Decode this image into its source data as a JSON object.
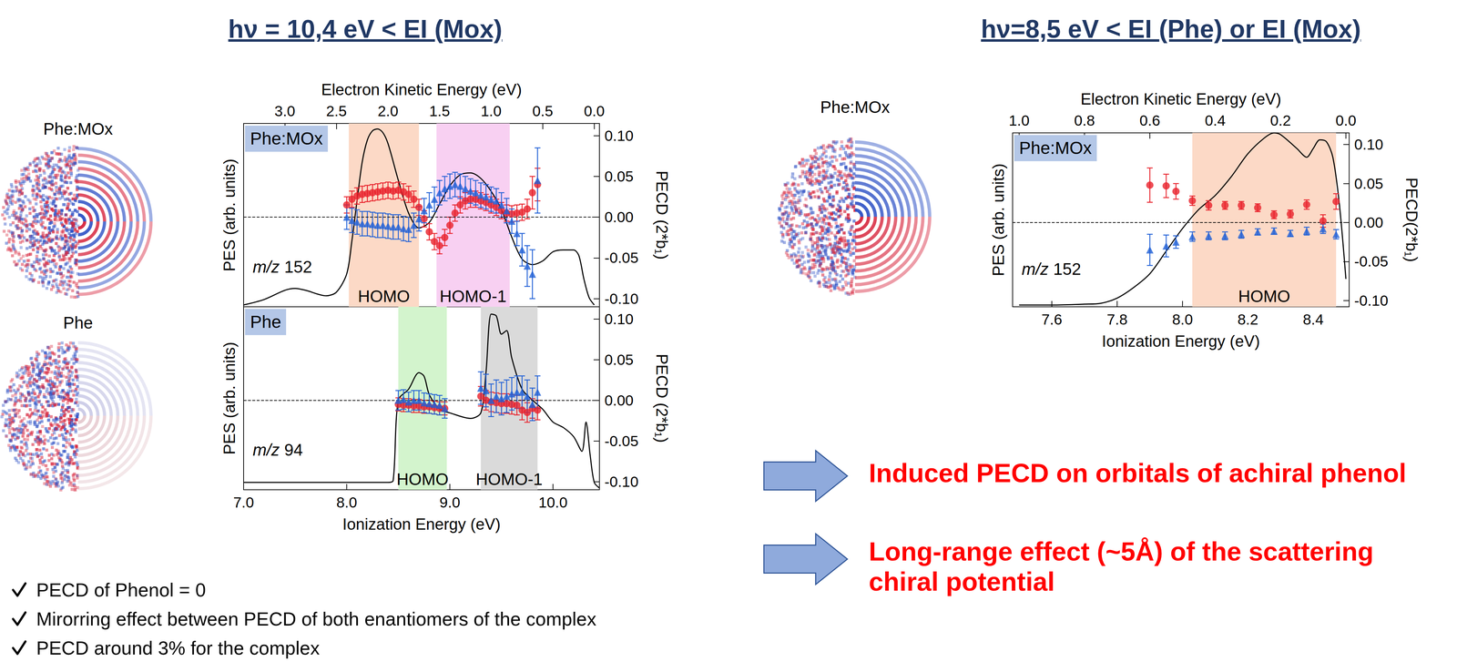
{
  "titles": [
    "hν = 10,4 eV < EI (Mox)",
    "hν=8,5 eV < EI (Phe) or EI (Mox)"
  ],
  "image_labels": [
    "Phe:MOx",
    "Phe",
    "Phe:MOx"
  ],
  "chart_data": [
    {
      "type": "line",
      "panel_label": "Phe:MOx",
      "annotation": "m/z 152",
      "x2_label": "Electron Kinetic Energy (eV)",
      "y_label": "PES (arb. units)",
      "y2_label": "PECD (2*b₁)",
      "xlim": [
        7.0,
        10.45
      ],
      "x2lim": [
        -0.05,
        3.4
      ],
      "x2ticks": [
        {
          "value": 0,
          "label": "0.0"
        },
        0.5,
        {
          "value": 1,
          "label": "1.0"
        },
        1.5,
        {
          "value": 2,
          "label": "2.0"
        },
        2.5,
        {
          "value": 3,
          "label": "3.0"
        }
      ],
      "ylim": [
        0,
        1
      ],
      "y2lim": [
        -0.11,
        0.115
      ],
      "y2ticks": [
        {
          "value": -0.1,
          "label": "-0.10"
        },
        -0.05,
        {
          "value": 0,
          "label": "0.00"
        },
        0.05,
        {
          "value": 0.1,
          "label": "0.10"
        }
      ],
      "regions": [
        {
          "label": "HOMO",
          "from": 8.02,
          "to": 8.7,
          "color": "#fcd9c6"
        },
        {
          "label": "HOMO-1",
          "from": 8.87,
          "to": 9.58,
          "color": "#f8d0f2"
        }
      ],
      "hlines": [
        {
          "value": 0,
          "axis": "y2",
          "line_style": "dashed"
        }
      ],
      "series": [
        {
          "type": "line",
          "color": "#000000",
          "x": [
            7.0,
            7.2,
            7.4,
            7.5,
            7.6,
            7.8,
            7.9,
            8.0,
            8.05,
            8.1,
            8.15,
            8.2,
            8.25,
            8.3,
            8.35,
            8.4,
            8.5,
            8.6,
            8.7,
            8.8,
            8.9,
            9.0,
            9.1,
            9.2,
            9.3,
            9.4,
            9.5,
            9.6,
            9.7,
            9.8,
            9.9,
            10.0,
            10.1,
            10.2,
            10.25,
            10.3,
            10.35,
            10.4
          ],
          "values": [
            0.01,
            0.04,
            0.09,
            0.1,
            0.09,
            0.06,
            0.08,
            0.18,
            0.36,
            0.58,
            0.79,
            0.91,
            0.96,
            0.97,
            0.95,
            0.89,
            0.69,
            0.51,
            0.43,
            0.46,
            0.56,
            0.66,
            0.72,
            0.73,
            0.7,
            0.63,
            0.53,
            0.38,
            0.26,
            0.23,
            0.25,
            0.3,
            0.31,
            0.31,
            0.28,
            0.15,
            0.05,
            0.01
          ]
        },
        {
          "type": "scatter",
          "axis": "y2",
          "color": "#e8202a",
          "marker": "circle",
          "x": [
            8.0,
            8.05,
            8.1,
            8.15,
            8.2,
            8.25,
            8.3,
            8.35,
            8.4,
            8.45,
            8.5,
            8.55,
            8.6,
            8.65,
            8.7,
            8.75,
            8.8,
            8.85,
            8.9,
            8.95,
            9.0,
            9.05,
            9.1,
            9.15,
            9.2,
            9.25,
            9.3,
            9.35,
            9.4,
            9.45,
            9.5,
            9.55,
            9.6,
            9.65,
            9.7,
            9.75,
            9.8,
            9.85
          ],
          "values": [
            0.015,
            0.022,
            0.026,
            0.028,
            0.029,
            0.03,
            0.031,
            0.032,
            0.033,
            0.032,
            0.033,
            0.031,
            0.028,
            0.022,
            0.012,
            -0.002,
            -0.018,
            -0.03,
            -0.035,
            -0.025,
            -0.01,
            0.005,
            0.015,
            0.02,
            0.022,
            0.022,
            0.02,
            0.018,
            0.015,
            0.012,
            0.008,
            0.005,
            0.004,
            0.005,
            0.006,
            0.01,
            0.03,
            0.04
          ],
          "errors": [
            0.01,
            0.01,
            0.01,
            0.01,
            0.01,
            0.01,
            0.01,
            0.01,
            0.01,
            0.01,
            0.01,
            0.01,
            0.01,
            0.01,
            0.01,
            0.01,
            0.01,
            0.01,
            0.01,
            0.01,
            0.01,
            0.01,
            0.01,
            0.01,
            0.01,
            0.01,
            0.01,
            0.01,
            0.01,
            0.01,
            0.01,
            0.01,
            0.01,
            0.01,
            0.01,
            0.012,
            0.02,
            0.02
          ]
        },
        {
          "type": "scatter",
          "axis": "y2",
          "color": "#1f5fd6",
          "marker": "triangle",
          "x": [
            8.0,
            8.05,
            8.1,
            8.15,
            8.2,
            8.25,
            8.3,
            8.35,
            8.4,
            8.45,
            8.5,
            8.55,
            8.6,
            8.65,
            8.7,
            8.75,
            8.8,
            8.85,
            8.9,
            8.95,
            9.0,
            9.05,
            9.1,
            9.15,
            9.2,
            9.25,
            9.3,
            9.35,
            9.4,
            9.45,
            9.5,
            9.55,
            9.6,
            9.65,
            9.7,
            9.75,
            9.8,
            9.85
          ],
          "values": [
            0.0,
            -0.004,
            -0.006,
            -0.008,
            -0.008,
            -0.009,
            -0.01,
            -0.01,
            -0.011,
            -0.012,
            -0.012,
            -0.014,
            -0.015,
            -0.01,
            -0.002,
            0.008,
            0.015,
            0.022,
            0.03,
            0.035,
            0.038,
            0.04,
            0.038,
            0.035,
            0.032,
            0.03,
            0.027,
            0.025,
            0.022,
            0.02,
            0.015,
            0.008,
            -0.005,
            -0.02,
            -0.04,
            -0.06,
            -0.07,
            0.045
          ],
          "errors": [
            0.015,
            0.015,
            0.015,
            0.015,
            0.015,
            0.015,
            0.015,
            0.015,
            0.015,
            0.015,
            0.015,
            0.015,
            0.015,
            0.015,
            0.015,
            0.015,
            0.015,
            0.015,
            0.015,
            0.015,
            0.015,
            0.015,
            0.015,
            0.015,
            0.015,
            0.015,
            0.015,
            0.015,
            0.015,
            0.015,
            0.015,
            0.015,
            0.015,
            0.015,
            0.02,
            0.025,
            0.03,
            0.04
          ]
        }
      ]
    },
    {
      "type": "line",
      "panel_label": "Phe",
      "annotation": "m/z 94",
      "x_label": "Ionization Energy (eV)",
      "y_label": "PES (arb. units)",
      "y2_label": "PECD (2*b₁)",
      "xlim": [
        7.0,
        10.45
      ],
      "xticks": [
        {
          "value": 7,
          "label": "7.0"
        },
        {
          "value": 8,
          "label": "8.0"
        },
        {
          "value": 9,
          "label": "9.0"
        },
        {
          "value": 10,
          "label": "10.0"
        }
      ],
      "ylim": [
        0,
        1
      ],
      "y2lim": [
        -0.11,
        0.115
      ],
      "y2ticks": [
        {
          "value": -0.1,
          "label": "-0.10"
        },
        -0.05,
        {
          "value": 0,
          "label": "0.00"
        },
        0.05,
        {
          "value": 0.1,
          "label": "0.10"
        }
      ],
      "regions": [
        {
          "label": "HOMO",
          "from": 8.5,
          "to": 8.97,
          "color": "#d3f4cd"
        },
        {
          "label": "HOMO-1",
          "from": 9.3,
          "to": 9.85,
          "color": "#dadada"
        }
      ],
      "hlines": [
        {
          "value": 0,
          "axis": "y2",
          "line_style": "dashed"
        }
      ],
      "series": [
        {
          "type": "line",
          "color": "#000000",
          "x": [
            7.0,
            7.5,
            8.0,
            8.4,
            8.45,
            8.5,
            8.6,
            8.7,
            8.75,
            8.8,
            8.9,
            9.0,
            9.2,
            9.3,
            9.35,
            9.4,
            9.45,
            9.5,
            9.55,
            9.6,
            9.7,
            9.8,
            9.9,
            10.0,
            10.1,
            10.2,
            10.28,
            10.32,
            10.36,
            10.4,
            10.45
          ],
          "values": [
            0.04,
            0.04,
            0.04,
            0.04,
            0.05,
            0.49,
            0.55,
            0.64,
            0.62,
            0.52,
            0.44,
            0.42,
            0.39,
            0.42,
            0.64,
            0.96,
            0.95,
            0.85,
            0.87,
            0.72,
            0.55,
            0.49,
            0.44,
            0.37,
            0.34,
            0.29,
            0.21,
            0.37,
            0.19,
            0.04,
            0.01
          ]
        },
        {
          "type": "scatter",
          "axis": "y2",
          "color": "#e8202a",
          "marker": "circle",
          "x": [
            8.5,
            8.55,
            8.6,
            8.65,
            8.7,
            8.75,
            8.8,
            8.85,
            8.9,
            8.95,
            9.3,
            9.35,
            9.4,
            9.45,
            9.5,
            9.55,
            9.6,
            9.65,
            9.7,
            9.75,
            9.8,
            9.85
          ],
          "values": [
            -0.005,
            -0.006,
            -0.006,
            -0.007,
            -0.007,
            -0.008,
            -0.008,
            -0.009,
            -0.01,
            -0.01,
            0.005,
            0.0,
            -0.002,
            -0.003,
            -0.004,
            -0.004,
            -0.005,
            -0.006,
            -0.012,
            -0.015,
            -0.01,
            -0.012
          ],
          "errors": [
            0.008,
            0.008,
            0.008,
            0.008,
            0.008,
            0.008,
            0.008,
            0.008,
            0.008,
            0.008,
            0.012,
            0.012,
            0.012,
            0.012,
            0.012,
            0.012,
            0.012,
            0.012,
            0.012,
            0.012,
            0.012,
            0.012
          ]
        },
        {
          "type": "scatter",
          "axis": "y2",
          "color": "#1f5fd6",
          "marker": "triangle",
          "x": [
            8.5,
            8.55,
            8.6,
            8.65,
            8.7,
            8.75,
            8.8,
            8.85,
            8.9,
            8.95,
            9.3,
            9.35,
            9.4,
            9.45,
            9.5,
            9.55,
            9.6,
            9.65,
            9.7,
            9.75,
            9.8,
            9.85
          ],
          "values": [
            0.0,
            0.001,
            -0.002,
            0.0,
            0.0,
            -0.003,
            -0.004,
            -0.005,
            -0.006,
            -0.01,
            0.015,
            0.012,
            0.0,
            0.005,
            0.002,
            0.005,
            0.008,
            0.01,
            0.01,
            0.005,
            -0.005,
            0.01
          ],
          "errors": [
            0.012,
            0.012,
            0.012,
            0.012,
            0.012,
            0.012,
            0.012,
            0.012,
            0.012,
            0.012,
            0.02,
            0.02,
            0.02,
            0.02,
            0.02,
            0.02,
            0.02,
            0.02,
            0.02,
            0.02,
            0.02,
            0.02
          ]
        }
      ]
    },
    {
      "type": "line",
      "panel_label": "Phe:MOx",
      "annotation": "m/z 152",
      "x_label": "Ionization Energy (eV)",
      "x2_label": "Electron Kinetic Energy (eV)",
      "y_label": "PES (arb. units)",
      "y2_label": "PECD(2*b₁)",
      "xlim": [
        7.48,
        8.51
      ],
      "xticks": [
        7.6,
        7.8,
        {
          "value": 8,
          "label": "8.0"
        },
        8.2,
        8.4
      ],
      "x2lim": [
        -0.01,
        1.02
      ],
      "x2ticks": [
        {
          "value": 0,
          "label": "0.0"
        },
        0.2,
        0.4,
        0.6,
        0.8,
        {
          "value": 1,
          "label": "1.0"
        }
      ],
      "ylim": [
        0,
        1
      ],
      "y2lim": [
        -0.108,
        0.115
      ],
      "y2ticks": [
        {
          "value": -0.1,
          "label": "-0.10"
        },
        -0.05,
        {
          "value": 0,
          "label": "0.00"
        },
        0.05,
        {
          "value": 0.1,
          "label": "0.10"
        }
      ],
      "regions": [
        {
          "label": "HOMO",
          "from": 8.03,
          "to": 8.47,
          "color": "#fcd9c6"
        }
      ],
      "hlines": [
        {
          "value": 0,
          "axis": "y2",
          "line_style": "dashed"
        }
      ],
      "series": [
        {
          "type": "line",
          "color": "#000000",
          "x": [
            7.5,
            7.6,
            7.7,
            7.75,
            7.8,
            7.85,
            7.9,
            7.95,
            8.0,
            8.05,
            8.1,
            8.15,
            8.2,
            8.25,
            8.28,
            8.3,
            8.35,
            8.38,
            8.4,
            8.42,
            8.44,
            8.46,
            8.48,
            8.5
          ],
          "values": [
            0.01,
            0.01,
            0.015,
            0.02,
            0.05,
            0.11,
            0.19,
            0.32,
            0.45,
            0.56,
            0.64,
            0.75,
            0.88,
            0.97,
            1.0,
            0.99,
            0.91,
            0.86,
            0.91,
            0.96,
            0.95,
            0.86,
            0.59,
            0.16
          ]
        },
        {
          "type": "scatter",
          "axis": "y2",
          "color": "#e8202a",
          "marker": "circle",
          "x": [
            7.9,
            7.95,
            7.98,
            8.03,
            8.08,
            8.13,
            8.18,
            8.23,
            8.28,
            8.33,
            8.38,
            8.43,
            8.47
          ],
          "values": [
            0.048,
            0.047,
            0.04,
            0.028,
            0.022,
            0.022,
            0.022,
            0.019,
            0.01,
            0.011,
            0.023,
            0.002,
            0.027
          ],
          "errors": [
            0.022,
            0.015,
            0.01,
            0.006,
            0.006,
            0.005,
            0.005,
            0.005,
            0.005,
            0.005,
            0.006,
            0.008,
            0.01
          ]
        },
        {
          "type": "scatter",
          "axis": "y2",
          "color": "#1f5fd6",
          "marker": "triangle",
          "x": [
            7.9,
            7.95,
            7.98,
            8.03,
            8.08,
            8.13,
            8.18,
            8.23,
            8.28,
            8.33,
            8.38,
            8.43,
            8.47
          ],
          "values": [
            -0.035,
            -0.03,
            -0.025,
            -0.018,
            -0.017,
            -0.017,
            -0.015,
            -0.012,
            -0.011,
            -0.014,
            -0.011,
            -0.008,
            -0.015
          ],
          "errors": [
            0.02,
            0.014,
            0.008,
            0.006,
            0.005,
            0.005,
            0.005,
            0.004,
            0.004,
            0.004,
            0.005,
            0.006,
            0.006
          ]
        }
      ]
    }
  ],
  "conclusions": [
    "Induced PECD on orbitals of achiral phenol",
    "Long-range effect (~5Å) of the scattering chiral potential"
  ],
  "bullets": [
    "PECD of Phenol = 0",
    "Mirorring effect between PECD of both enantiomers of the complex",
    "PECD around 3% for the complex"
  ]
}
